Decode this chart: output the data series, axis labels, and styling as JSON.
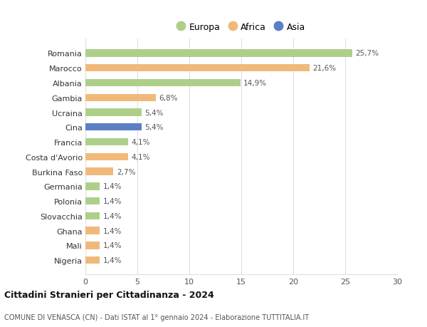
{
  "countries": [
    "Romania",
    "Marocco",
    "Albania",
    "Gambia",
    "Ucraina",
    "Cina",
    "Francia",
    "Costa d'Avorio",
    "Burkina Faso",
    "Germania",
    "Polonia",
    "Slovacchia",
    "Ghana",
    "Mali",
    "Nigeria"
  ],
  "values": [
    25.7,
    21.6,
    14.9,
    6.8,
    5.4,
    5.4,
    4.1,
    4.1,
    2.7,
    1.4,
    1.4,
    1.4,
    1.4,
    1.4,
    1.4
  ],
  "labels": [
    "25,7%",
    "21,6%",
    "14,9%",
    "6,8%",
    "5,4%",
    "5,4%",
    "4,1%",
    "4,1%",
    "2,7%",
    "1,4%",
    "1,4%",
    "1,4%",
    "1,4%",
    "1,4%",
    "1,4%"
  ],
  "continents": [
    "Europa",
    "Africa",
    "Europa",
    "Africa",
    "Europa",
    "Asia",
    "Europa",
    "Africa",
    "Africa",
    "Europa",
    "Europa",
    "Europa",
    "Africa",
    "Africa",
    "Africa"
  ],
  "colors": {
    "Europa": "#aecf8a",
    "Africa": "#f0b97a",
    "Asia": "#5b7fc4"
  },
  "xlim": [
    0,
    30
  ],
  "xticks": [
    0,
    5,
    10,
    15,
    20,
    25,
    30
  ],
  "title": "Cittadini Stranieri per Cittadinanza - 2024",
  "subtitle": "COMUNE DI VENASCA (CN) - Dati ISTAT al 1° gennaio 2024 - Elaborazione TUTTITALIA.IT",
  "background_color": "#ffffff",
  "grid_color": "#e0e0e0",
  "bar_height": 0.5
}
